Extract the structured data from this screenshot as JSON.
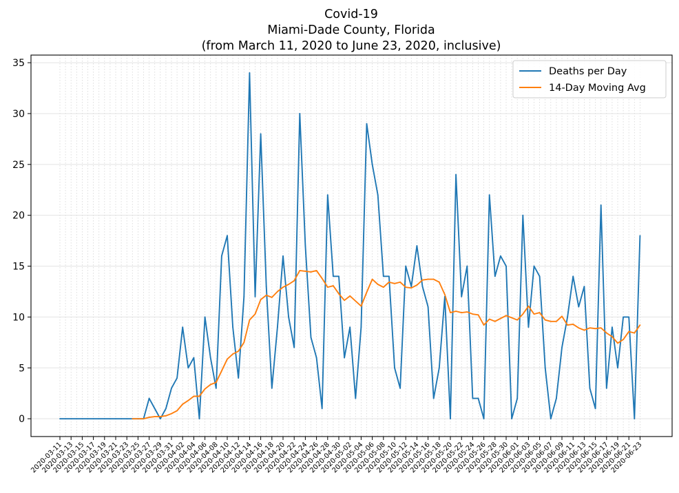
{
  "chart_data": {
    "type": "line",
    "title_lines": [
      "Covid-19",
      "Miami-Dade County, Florida",
      "(from March 11, 2020 to June 23, 2020, inclusive)"
    ],
    "x_start_date": "2020-03-11",
    "x_end_date": "2020-06-23",
    "x_tick_labels": [
      "2020-03-11",
      "2020-03-13",
      "2020-03-15",
      "2020-03-17",
      "2020-03-19",
      "2020-03-21",
      "2020-03-23",
      "2020-03-25",
      "2020-03-27",
      "2020-03-29",
      "2020-03-31",
      "2020-04-02",
      "2020-04-04",
      "2020-04-06",
      "2020-04-08",
      "2020-04-10",
      "2020-04-12",
      "2020-04-14",
      "2020-04-16",
      "2020-04-18",
      "2020-04-20",
      "2020-04-22",
      "2020-04-24",
      "2020-04-26",
      "2020-04-28",
      "2020-04-30",
      "2020-05-02",
      "2020-05-04",
      "2020-05-06",
      "2020-05-08",
      "2020-05-10",
      "2020-05-12",
      "2020-05-14",
      "2020-05-16",
      "2020-05-18",
      "2020-05-20",
      "2020-05-22",
      "2020-05-24",
      "2020-05-26",
      "2020-05-28",
      "2020-05-30",
      "2020-06-01",
      "2020-06-03",
      "2020-06-05",
      "2020-06-07",
      "2020-06-09",
      "2020-06-11",
      "2020-06-13",
      "2020-06-15",
      "2020-06-17",
      "2020-06-19",
      "2020-06-21",
      "2020-06-23"
    ],
    "ylim": [
      -1.75,
      35.75
    ],
    "y_ticks": [
      0,
      5,
      10,
      15,
      20,
      25,
      30,
      35
    ],
    "grid": true,
    "legend_position": "top-right",
    "series": [
      {
        "name": "Deaths per Day",
        "color": "#1f77b4",
        "start_date": "2020-03-11",
        "values": [
          0,
          0,
          0,
          0,
          0,
          0,
          0,
          0,
          0,
          0,
          0,
          0,
          0,
          0,
          0,
          0,
          2,
          1,
          0,
          1,
          3,
          4,
          9,
          5,
          6,
          0,
          10,
          6,
          3,
          16,
          18,
          9,
          4,
          12,
          34,
          12,
          28,
          13,
          3,
          9,
          16,
          10,
          7,
          30,
          17,
          8,
          6,
          1,
          22,
          14,
          14,
          6,
          9,
          2,
          9,
          29,
          25,
          22,
          14,
          14,
          5,
          3,
          15,
          13,
          17,
          13,
          11,
          2,
          5,
          12,
          0,
          24,
          12,
          15,
          2,
          2,
          0,
          22,
          14,
          16,
          15,
          0,
          2,
          20,
          9,
          15,
          14,
          5,
          0,
          2,
          7,
          10,
          14,
          11,
          13,
          3,
          1,
          21,
          3,
          9,
          5,
          10,
          10,
          0,
          18
        ]
      },
      {
        "name": "14-Day Moving Avg",
        "color": "#ff7f0e",
        "start_date": "2020-03-24",
        "values": [
          0,
          0,
          0,
          0.14,
          0.21,
          0.21,
          0.29,
          0.5,
          0.79,
          1.43,
          1.79,
          2.21,
          2.21,
          2.93,
          3.36,
          3.57,
          4.71,
          5.86,
          6.36,
          6.64,
          7.5,
          9.71,
          10.29,
          11.71,
          12.14,
          11.93,
          12.5,
          12.93,
          13.21,
          13.57,
          14.57,
          14.5,
          14.43,
          14.57,
          13.79,
          12.93,
          13.07,
          12.29,
          11.64,
          12.07,
          11.57,
          11.07,
          12.43,
          13.71,
          13.21,
          12.93,
          13.43,
          13.29,
          13.43,
          12.93,
          12.86,
          13.14,
          13.64,
          13.71,
          13.71,
          13.43,
          12.21,
          10.43,
          10.57,
          10.43,
          10.5,
          10.29,
          10.21,
          9.21,
          9.79,
          9.57,
          9.86,
          10.14,
          9.93,
          9.71,
          10.29,
          11.07,
          10.29,
          10.43,
          9.71,
          9.57,
          9.57,
          10.07,
          9.21,
          9.29,
          8.93,
          8.71,
          8.93,
          8.86,
          8.93,
          8.43,
          8.07,
          7.43,
          7.79,
          8.57,
          8.43,
          9.21
        ]
      }
    ]
  }
}
